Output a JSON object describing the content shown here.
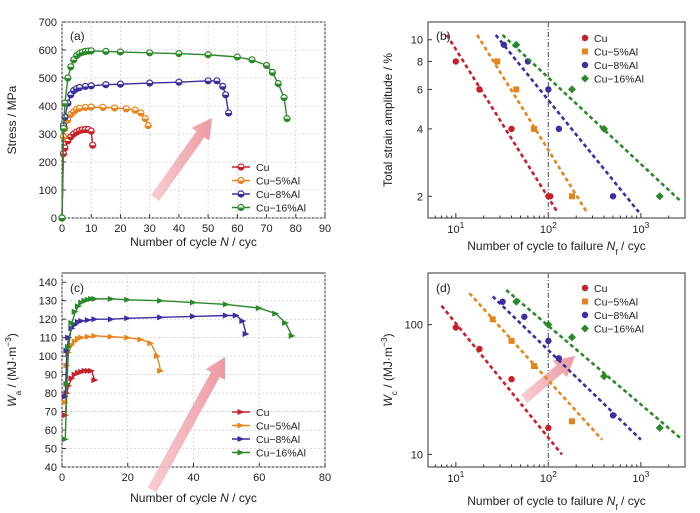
{
  "colors": {
    "Cu": "#c8202a",
    "Cu-5%Al": "#e8841c",
    "Cu-8%Al": "#3b2fa0",
    "Cu-16%Al": "#2a8a2a",
    "arrow": "#f0a0a8",
    "vline": "#6a7282"
  },
  "chart_data": [
    {
      "type": "line",
      "panel_label": "(a)",
      "xlabel": "Number of cycle N / cyc",
      "ylabel": "Stress / MPa",
      "xlim": [
        0,
        90
      ],
      "ylim": [
        0,
        700
      ],
      "xticks": [
        0,
        10,
        20,
        30,
        40,
        50,
        60,
        70,
        80,
        90
      ],
      "yticks": [
        0,
        100,
        200,
        300,
        400,
        500,
        600,
        700
      ],
      "legend_position": "bottom-right",
      "grid": true,
      "series": [
        {
          "name": "Cu",
          "color_key": "Cu",
          "x": [
            0,
            0.5,
            1,
            2,
            3,
            4,
            5,
            6,
            7,
            8,
            9,
            10,
            10.5
          ],
          "y": [
            0,
            230,
            250,
            275,
            290,
            300,
            307,
            312,
            315,
            316,
            316,
            310,
            260
          ]
        },
        {
          "name": "Cu−5%Al",
          "color_key": "Cu-5%Al",
          "x": [
            0,
            0.5,
            1,
            2,
            3,
            4,
            5,
            6,
            8,
            10,
            14,
            18,
            22,
            25,
            27,
            28.5,
            29.5
          ],
          "y": [
            0,
            290,
            320,
            350,
            370,
            380,
            388,
            392,
            395,
            396,
            395,
            393,
            390,
            385,
            375,
            355,
            330
          ]
        },
        {
          "name": "Cu−8%Al",
          "color_key": "Cu-8%Al",
          "x": [
            0,
            0.5,
            1,
            2,
            3,
            4,
            5,
            6,
            8,
            10,
            15,
            20,
            30,
            40,
            50,
            53,
            55,
            56,
            57
          ],
          "y": [
            0,
            330,
            360,
            410,
            440,
            455,
            462,
            466,
            470,
            472,
            476,
            478,
            482,
            485,
            490,
            490,
            470,
            440,
            375
          ]
        },
        {
          "name": "Cu−16%Al",
          "color_key": "Cu-16%Al",
          "x": [
            0,
            0.5,
            1,
            2,
            3,
            4,
            5,
            6,
            7,
            8,
            9,
            10,
            15,
            20,
            30,
            40,
            50,
            60,
            65,
            70,
            72,
            74,
            76,
            77
          ],
          "y": [
            0,
            320,
            410,
            500,
            540,
            565,
            580,
            588,
            592,
            595,
            596,
            597,
            595,
            593,
            590,
            587,
            583,
            575,
            565,
            545,
            520,
            480,
            430,
            355
          ]
        }
      ]
    },
    {
      "type": "scatter",
      "panel_label": "(b)",
      "xlabel": "Number of cycle to failure N_f / cyc",
      "ylabel": "Total strain amplitude / %",
      "xscale": "log",
      "yscale": "log",
      "xlim": [
        5,
        3000
      ],
      "ylim": [
        1.6,
        12
      ],
      "xticks": [
        {
          "v": 10,
          "base": "10",
          "exp": "1"
        },
        {
          "v": 100,
          "base": "10",
          "exp": "2"
        },
        {
          "v": 1000,
          "base": "10",
          "exp": "3"
        }
      ],
      "yticks": [
        2,
        4,
        6,
        8,
        10
      ],
      "vline": 100,
      "legend_position": "top-right",
      "series": [
        {
          "name": "Cu",
          "color_key": "Cu",
          "x": [
            10,
            18,
            40,
            100,
            105
          ],
          "y": [
            8,
            6,
            4,
            2,
            2
          ],
          "fit": [
            [
              8,
              10.5
            ],
            [
              125,
              1.7
            ]
          ]
        },
        {
          "name": "Cu−5%Al",
          "color_key": "Cu-5%Al",
          "x": [
            28,
            45,
            70,
            180
          ],
          "y": [
            8,
            6,
            4,
            2
          ],
          "fit": [
            [
              17,
              10.5
            ],
            [
              260,
              1.7
            ]
          ]
        },
        {
          "name": "Cu−8%Al",
          "color_key": "Cu-8%Al",
          "x": [
            33,
            60,
            100,
            130,
            500
          ],
          "y": [
            9.5,
            8,
            6,
            4,
            2
          ],
          "fit": [
            [
              27,
              10.5
            ],
            [
              950,
              1.7
            ]
          ]
        },
        {
          "name": "Cu−16%Al",
          "color_key": "Cu-16%Al",
          "x": [
            45,
            180,
            400,
            1600
          ],
          "y": [
            9.5,
            6,
            4,
            2
          ],
          "fit": [
            [
              32,
              10.5
            ],
            [
              2700,
              1.9
            ]
          ]
        }
      ]
    },
    {
      "type": "line",
      "panel_label": "(c)",
      "xlabel": "Number of cycle N / cyc",
      "ylabel": "W_a / (MJ·m⁻³)",
      "xlim": [
        0,
        80
      ],
      "ylim": [
        40,
        145
      ],
      "xticks": [
        0,
        20,
        40,
        60,
        80
      ],
      "yticks": [
        40,
        50,
        60,
        70,
        80,
        90,
        100,
        110,
        120,
        130,
        140
      ],
      "legend_position": "bottom-right",
      "grid": true,
      "series": [
        {
          "name": "Cu",
          "color_key": "Cu",
          "x": [
            1,
            1.5,
            2,
            3,
            4,
            5,
            6,
            7,
            8,
            9,
            10
          ],
          "y": [
            68,
            80,
            84,
            88,
            90,
            91,
            91.5,
            92,
            92,
            92,
            87
          ]
        },
        {
          "name": "Cu−5%Al",
          "color_key": "Cu-5%Al",
          "x": [
            1,
            1.5,
            2,
            3,
            4,
            5,
            6,
            8,
            10,
            15,
            20,
            24,
            27,
            29,
            30
          ],
          "y": [
            75,
            95,
            102,
            106,
            108,
            109.5,
            110,
            110.5,
            111,
            110.5,
            110,
            109,
            107,
            100,
            92
          ]
        },
        {
          "name": "Cu−8%Al",
          "color_key": "Cu-8%Al",
          "x": [
            1,
            1.5,
            2,
            3,
            4,
            5,
            6,
            8,
            10,
            15,
            20,
            30,
            40,
            50,
            53,
            55,
            56
          ],
          "y": [
            78,
            103,
            110,
            115,
            117,
            118.5,
            119,
            119.5,
            120,
            120,
            120.5,
            121,
            121.5,
            122,
            122,
            119,
            112
          ]
        },
        {
          "name": "Cu−16%Al",
          "color_key": "Cu-16%Al",
          "x": [
            1,
            1.5,
            2,
            3,
            4,
            5,
            6,
            7,
            8,
            9,
            10,
            15,
            20,
            30,
            40,
            50,
            60,
            65,
            68,
            70
          ],
          "y": [
            55,
            85,
            105,
            118,
            124,
            127,
            129,
            130,
            130.5,
            131,
            131,
            131,
            130.5,
            130,
            129,
            128,
            126,
            123,
            118,
            111
          ]
        }
      ]
    },
    {
      "type": "scatter",
      "panel_label": "(d)",
      "xlabel": "Number of cycle to failure N_f / cyc",
      "ylabel": "W_c / (MJ·m⁻³)",
      "xscale": "log",
      "yscale": "log",
      "xlim": [
        5,
        3000
      ],
      "ylim": [
        8,
        250
      ],
      "xticks": [
        {
          "v": 10,
          "base": "10",
          "exp": "1"
        },
        {
          "v": 100,
          "base": "10",
          "exp": "2"
        },
        {
          "v": 1000,
          "base": "10",
          "exp": "3"
        }
      ],
      "yticks": [
        {
          "v": 10,
          "label": "10"
        },
        {
          "v": 100,
          "label": "100"
        }
      ],
      "vline": 100,
      "legend_position": "top-right",
      "series": [
        {
          "name": "Cu",
          "color_key": "Cu",
          "x": [
            10,
            18,
            40,
            100
          ],
          "y": [
            95,
            65,
            38,
            16
          ],
          "fit": [
            [
              7,
              140
            ],
            [
              140,
              10
            ]
          ]
        },
        {
          "name": "Cu−5%Al",
          "color_key": "Cu-5%Al",
          "x": [
            25,
            40,
            70,
            180
          ],
          "y": [
            110,
            75,
            48,
            18
          ],
          "fit": [
            [
              14,
              175
            ],
            [
              380,
              13
            ]
          ]
        },
        {
          "name": "Cu−8%Al",
          "color_key": "Cu-8%Al",
          "x": [
            32,
            55,
            100,
            130,
            500
          ],
          "y": [
            150,
            115,
            75,
            55,
            20
          ],
          "fit": [
            [
              25,
              165
            ],
            [
              1000,
              13
            ]
          ]
        },
        {
          "name": "Cu−16%Al",
          "color_key": "Cu-16%Al",
          "x": [
            45,
            100,
            180,
            400,
            1600
          ],
          "y": [
            150,
            100,
            80,
            40,
            16
          ],
          "fit": [
            [
              35,
              185
            ],
            [
              2800,
              13
            ]
          ]
        }
      ]
    }
  ]
}
